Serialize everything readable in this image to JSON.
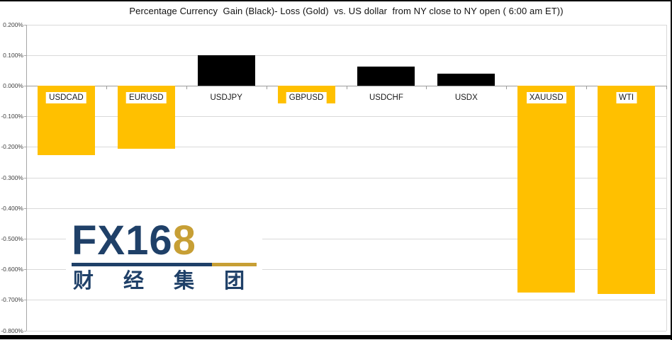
{
  "title": "Percentage Currency  Gain (Black)- Loss (Gold)  vs. US dollar  from NY close to NY open ( 6:00 am ET))",
  "watermark": {
    "brand_prefix": "FX16",
    "brand_suffix_digit": "8",
    "brand_cjk": "财 经 集 团",
    "navy": "#1F4068",
    "gold": "#C79F35"
  },
  "colors": {
    "gain_bar": "#000000",
    "loss_bar": "#FFC000",
    "gridline": "#D9D9D9",
    "zero_line": "#9C9C9C",
    "axis_line": "#A6A6A6",
    "tick_label": "#404040",
    "category_label": "#1A1A1A",
    "label_bg": "#FFFFFF"
  },
  "chart_data": {
    "type": "bar",
    "title": "Percentage Currency  Gain (Black)- Loss (Gold)  vs. US dollar  from NY close to NY open ( 6:00 am ET))",
    "categories": [
      "USDCAD",
      "EURUSD",
      "USDJPY",
      "GBPUSD",
      "USDCHF",
      "USDX",
      "XAUUSD",
      "WTI"
    ],
    "values": [
      -0.225,
      -0.205,
      0.1,
      -0.058,
      0.063,
      0.041,
      -0.675,
      -0.68
    ],
    "unit": "percent",
    "bar_color_rule": "positive = black (gain), negative = gold (loss)",
    "xlabel": "",
    "ylabel": "",
    "ylim": [
      -0.8,
      0.2
    ],
    "ytick_step": 0.1,
    "ytick_labels": [
      "0.200%",
      "0.100%",
      "0.000%",
      "-0.100%",
      "-0.200%",
      "-0.300%",
      "-0.400%",
      "-0.500%",
      "-0.600%",
      "-0.700%",
      "-0.800%"
    ],
    "grid": true,
    "legend": "none"
  }
}
